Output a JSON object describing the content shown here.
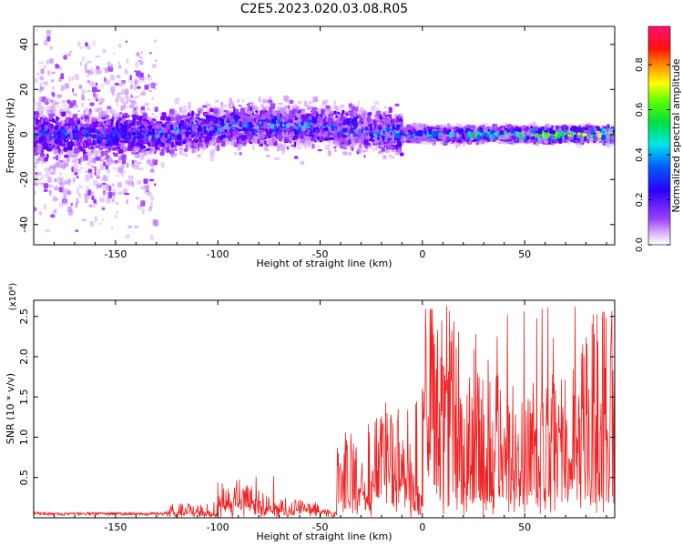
{
  "title": "C2E5.2023.020.03.08.R05",
  "chart_data": [
    {
      "type": "heatmap",
      "xlabel": "Height of straight line (km)",
      "ylabel": "Frequency (Hz)",
      "xlim": [
        -190,
        94
      ],
      "ylim": [
        -49,
        48
      ],
      "xticks": [
        -150,
        -100,
        -50,
        0,
        50
      ],
      "yticks": [
        -40,
        -20,
        0,
        20,
        40
      ],
      "colorbar": {
        "label": "Normalized spectral amplitude",
        "range": [
          0.0,
          0.97
        ],
        "ticks": [
          0.0,
          0.2,
          0.4,
          0.6,
          0.8
        ],
        "colormap": "rainbow (white/purple - blue - cyan - green - yellow - red - magenta)"
      },
      "colors": {
        "low": "#e8c8ff",
        "mid_low": "#7a00ff",
        "mid": "#00e8c8",
        "high": "#ff2020"
      },
      "bands": [
        {
          "x_range": [
            -190,
            -130
          ],
          "center_freq": 0,
          "noise_spread": 45,
          "core_halfwidth": 6,
          "max_amplitude": 0.45
        },
        {
          "x_range": [
            -130,
            -10
          ],
          "center_freq_start": 0,
          "center_freq_end": 4,
          "noise_spread": 12,
          "core_halfwidth": 5,
          "max_amplitude": 0.5
        },
        {
          "x_range": [
            -10,
            94
          ],
          "center_freq": 0,
          "noise_spread": 4,
          "core_halfwidth": 2,
          "max_amplitude": 0.97
        }
      ]
    },
    {
      "type": "line",
      "xlabel": "Height of straight line (km)",
      "ylabel": "SNR (10 * v/v)",
      "ylabel_multiplier": "(x10⁴)",
      "xlim": [
        -190,
        94
      ],
      "ylim": [
        0,
        27000
      ],
      "xticks": [
        -150,
        -100,
        -50,
        0,
        50
      ],
      "yticks": [
        5000,
        10000,
        15000,
        20000,
        25000
      ],
      "ytick_labels": [
        "0.5",
        "1.0",
        "1.5",
        "2.0",
        "2.5"
      ],
      "color": "#ee2222",
      "segments": [
        {
          "x_range": [
            -190,
            -125
          ],
          "baseline": 300,
          "peak": 700
        },
        {
          "x_range": [
            -125,
            -100
          ],
          "baseline": 500,
          "peak": 2000
        },
        {
          "x_range": [
            -100,
            -70
          ],
          "baseline": 1500,
          "peak": 5500
        },
        {
          "x_range": [
            -70,
            -42
          ],
          "baseline": 800,
          "peak": 2500
        },
        {
          "x_range": [
            -42,
            -25
          ],
          "baseline": 2000,
          "peak": 12000
        },
        {
          "x_range": [
            -25,
            0
          ],
          "baseline": 3000,
          "peak": 16000
        },
        {
          "x_range": [
            0,
            94
          ],
          "baseline": 3000,
          "peak": 27000
        }
      ]
    }
  ]
}
